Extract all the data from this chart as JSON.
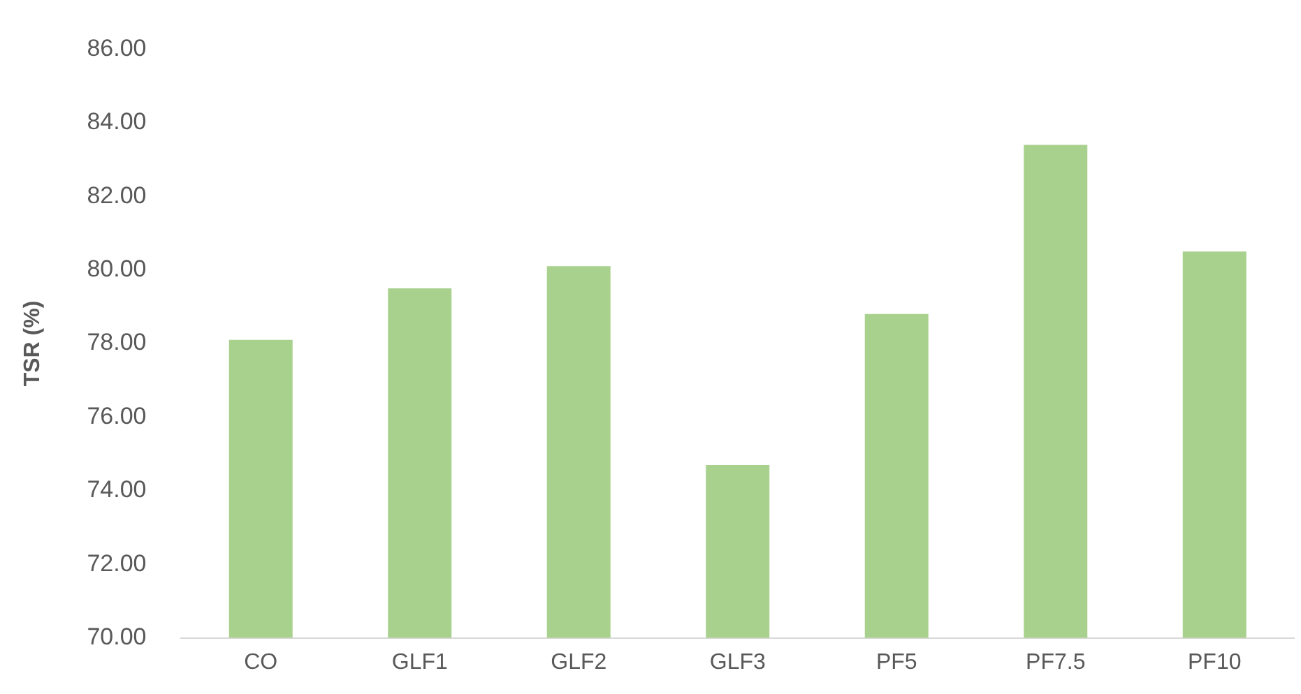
{
  "chart_data": {
    "type": "bar",
    "ylabel": "TSR (%)",
    "categories": [
      "CO",
      "GLF1",
      "GLF2",
      "GLF3",
      "PF5",
      "PF7.5",
      "PF10"
    ],
    "values": [
      78.1,
      79.5,
      80.1,
      74.7,
      78.8,
      83.4,
      80.5
    ],
    "color": "#a9d18e",
    "ylim": [
      70,
      86
    ],
    "yticks": [
      {
        "value": 70,
        "label": "70.00"
      },
      {
        "value": 72,
        "label": "72.00"
      },
      {
        "value": 74,
        "label": "74.00"
      },
      {
        "value": 76,
        "label": "76.00"
      },
      {
        "value": 78,
        "label": "78.00"
      },
      {
        "value": 80,
        "label": "80.00"
      },
      {
        "value": 82,
        "label": "82.00"
      },
      {
        "value": 84,
        "label": "84.00"
      },
      {
        "value": 86,
        "label": "86.00"
      }
    ],
    "grid": false,
    "legend": false
  }
}
